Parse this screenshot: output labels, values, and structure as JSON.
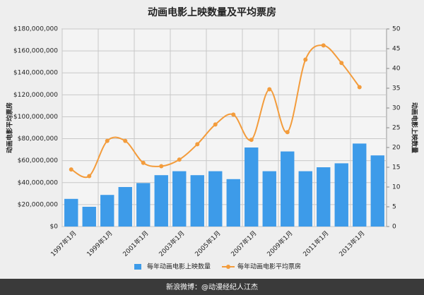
{
  "chart_data": {
    "type": "bar-line",
    "title": "动画电影上映数量及平均票房",
    "y_label": "动画电影平均票房",
    "y2_label": "动画电影上映数量",
    "footer": "新浪微博：@动漫经纪人江杰",
    "categories": [
      "1997年1月",
      null,
      "1999年1月",
      null,
      "2001年1月",
      null,
      "2003年1月",
      null,
      "2005年1月",
      null,
      "2007年1月",
      null,
      "2009年1月",
      null,
      "2011年1月",
      null,
      "2013年1月",
      null
    ],
    "series": [
      {
        "name": "每年动画电影上映数量",
        "type": "bar",
        "axis": "y2",
        "color": "#3d9be9",
        "values": [
          7,
          5,
          8,
          10,
          11,
          13,
          14,
          13,
          14,
          12,
          20,
          14,
          19,
          14,
          15,
          16,
          21,
          18
        ]
      },
      {
        "name": "每年动画电影平均票房",
        "type": "line",
        "axis": "y",
        "color": "#f39c3c",
        "values": [
          52000000,
          46000000,
          78000000,
          78000000,
          58000000,
          55000000,
          61000000,
          75000000,
          93000000,
          102000000,
          79000000,
          125000000,
          86000000,
          152000000,
          165000000,
          149000000,
          127000000,
          null
        ]
      }
    ],
    "ylim": [
      0,
      180000000
    ],
    "yticks": [
      {
        "value": 0,
        "label": "$0"
      },
      {
        "value": 20000000,
        "label": "$20,000,000"
      },
      {
        "value": 40000000,
        "label": "$40,000,000"
      },
      {
        "value": 60000000,
        "label": "$60,000,000"
      },
      {
        "value": 80000000,
        "label": "$80,000,000"
      },
      {
        "value": 100000000,
        "label": "$100,000,000"
      },
      {
        "value": 120000000,
        "label": "$120,000,000"
      },
      {
        "value": 140000000,
        "label": "$140,000,000"
      },
      {
        "value": 160000000,
        "label": "$160,000,000"
      },
      {
        "value": 180000000,
        "label": "$180,000,000"
      }
    ],
    "y2lim": [
      0,
      50
    ],
    "y2ticks": [
      0,
      5,
      10,
      15,
      20,
      25,
      30,
      35,
      40,
      45,
      50
    ],
    "grid": true
  }
}
